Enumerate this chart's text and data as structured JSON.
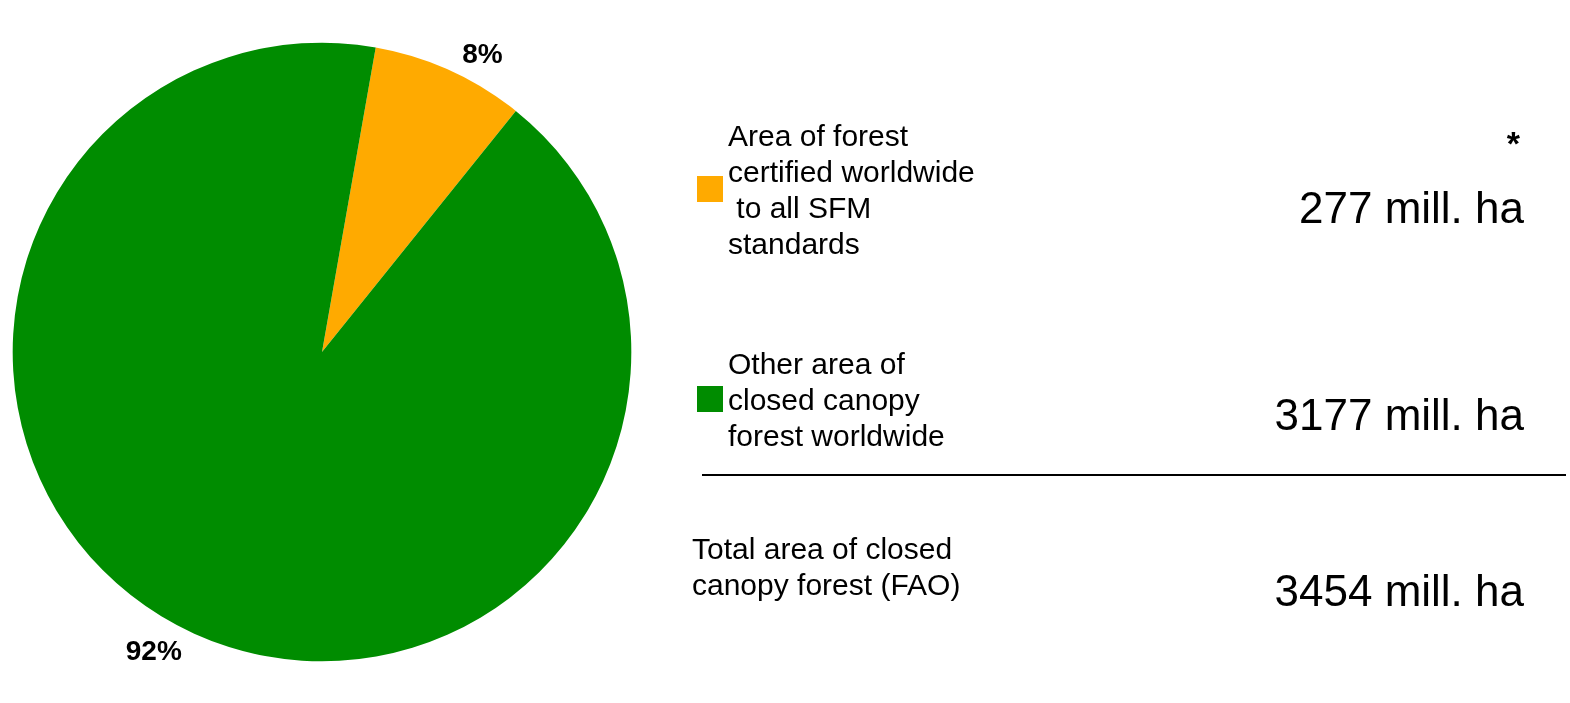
{
  "chart_data": {
    "type": "pie",
    "categories": [
      "Area of forest certified worldwide to all SFM standards",
      "Other area of closed canopy forest worldwide"
    ],
    "values": [
      8,
      92
    ],
    "colors": [
      "#ffaa00",
      "#008c00"
    ],
    "value_labels": [
      "8%",
      "92%"
    ],
    "legend": "right",
    "annotations": [
      "*",
      "277 mill. ha",
      "3177 mill. ha",
      "Total area of closed canopy forest (FAO)",
      "3454 mill. ha"
    ]
  }
}
